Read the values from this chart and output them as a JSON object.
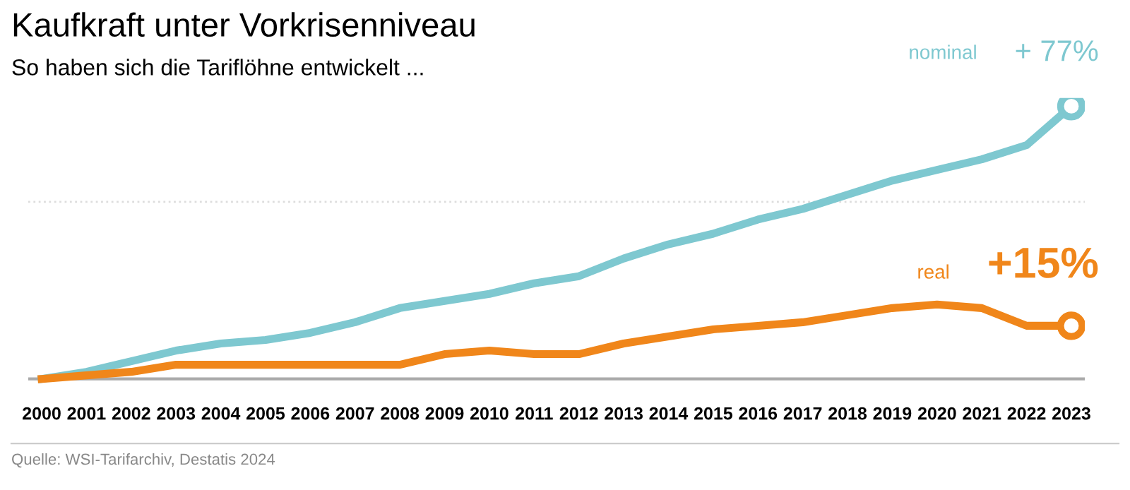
{
  "chart_data": {
    "type": "line",
    "title": "Kaufkraft unter Vorkrisenniveau",
    "subtitle": "So haben sich die Tariflöhne entwickelt ...",
    "categories": [
      "2000",
      "2001",
      "2002",
      "2003",
      "2004",
      "2005",
      "2006",
      "2007",
      "2008",
      "2009",
      "2010",
      "2011",
      "2012",
      "2013",
      "2014",
      "2015",
      "2016",
      "2017",
      "2018",
      "2019",
      "2020",
      "2021",
      "2022",
      "2023"
    ],
    "series": [
      {
        "name": "nominal",
        "color": "#7ec8d0",
        "values": [
          0,
          2,
          5,
          8,
          10,
          11,
          13,
          16,
          20,
          22,
          24,
          27,
          29,
          34,
          38,
          41,
          45,
          48,
          52,
          56,
          59,
          62,
          66,
          77
        ],
        "value_labels": [
          null,
          null,
          null,
          null,
          null,
          null,
          null,
          null,
          null,
          null,
          null,
          null,
          null,
          null,
          null,
          null,
          null,
          null,
          null,
          null,
          null,
          null,
          null,
          "+ 77%"
        ]
      },
      {
        "name": "real",
        "color": "#f0861a",
        "values": [
          0,
          1,
          2,
          4,
          4,
          4,
          4,
          4,
          4,
          7,
          8,
          7,
          7,
          10,
          12,
          14,
          15,
          16,
          18,
          20,
          21,
          20,
          15,
          15
        ],
        "value_labels": [
          null,
          null,
          null,
          null,
          null,
          null,
          null,
          null,
          null,
          null,
          null,
          null,
          null,
          null,
          null,
          null,
          null,
          null,
          null,
          null,
          null,
          null,
          null,
          "+15%"
        ]
      }
    ],
    "ref_lines": [
      {
        "axis": "y",
        "value": 50,
        "color": "#dddddd",
        "line_style": "dotted"
      }
    ],
    "legend": false,
    "marker": "none",
    "line_style": "solid",
    "annotations": [
      "Quelle: WSI-Tarifarchiv, Destatis 2024"
    ]
  }
}
